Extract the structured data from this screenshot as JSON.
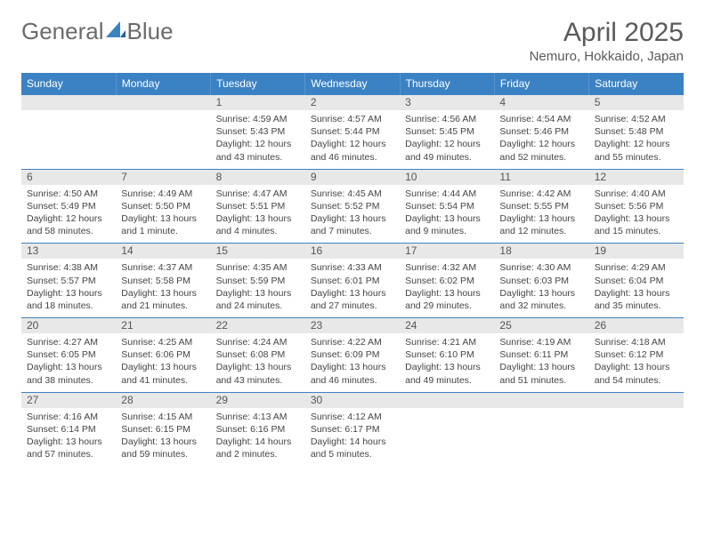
{
  "logo": {
    "text1": "General",
    "text2": "Blue"
  },
  "title": "April 2025",
  "location": "Nemuro, Hokkaido, Japan",
  "colors": {
    "header_bg": "#3b82c4",
    "header_text": "#ffffff",
    "date_bar_bg": "#e8e8e8",
    "border": "#3b82c4",
    "body_text": "#444444",
    "title_text": "#5a5a5a",
    "logo_text": "#6b6b6b"
  },
  "day_headers": [
    "Sunday",
    "Monday",
    "Tuesday",
    "Wednesday",
    "Thursday",
    "Friday",
    "Saturday"
  ],
  "weeks": [
    [
      {
        "date": "",
        "sunrise": "",
        "sunset": "",
        "daylight": ""
      },
      {
        "date": "",
        "sunrise": "",
        "sunset": "",
        "daylight": ""
      },
      {
        "date": "1",
        "sunrise": "Sunrise: 4:59 AM",
        "sunset": "Sunset: 5:43 PM",
        "daylight": "Daylight: 12 hours and 43 minutes."
      },
      {
        "date": "2",
        "sunrise": "Sunrise: 4:57 AM",
        "sunset": "Sunset: 5:44 PM",
        "daylight": "Daylight: 12 hours and 46 minutes."
      },
      {
        "date": "3",
        "sunrise": "Sunrise: 4:56 AM",
        "sunset": "Sunset: 5:45 PM",
        "daylight": "Daylight: 12 hours and 49 minutes."
      },
      {
        "date": "4",
        "sunrise": "Sunrise: 4:54 AM",
        "sunset": "Sunset: 5:46 PM",
        "daylight": "Daylight: 12 hours and 52 minutes."
      },
      {
        "date": "5",
        "sunrise": "Sunrise: 4:52 AM",
        "sunset": "Sunset: 5:48 PM",
        "daylight": "Daylight: 12 hours and 55 minutes."
      }
    ],
    [
      {
        "date": "6",
        "sunrise": "Sunrise: 4:50 AM",
        "sunset": "Sunset: 5:49 PM",
        "daylight": "Daylight: 12 hours and 58 minutes."
      },
      {
        "date": "7",
        "sunrise": "Sunrise: 4:49 AM",
        "sunset": "Sunset: 5:50 PM",
        "daylight": "Daylight: 13 hours and 1 minute."
      },
      {
        "date": "8",
        "sunrise": "Sunrise: 4:47 AM",
        "sunset": "Sunset: 5:51 PM",
        "daylight": "Daylight: 13 hours and 4 minutes."
      },
      {
        "date": "9",
        "sunrise": "Sunrise: 4:45 AM",
        "sunset": "Sunset: 5:52 PM",
        "daylight": "Daylight: 13 hours and 7 minutes."
      },
      {
        "date": "10",
        "sunrise": "Sunrise: 4:44 AM",
        "sunset": "Sunset: 5:54 PM",
        "daylight": "Daylight: 13 hours and 9 minutes."
      },
      {
        "date": "11",
        "sunrise": "Sunrise: 4:42 AM",
        "sunset": "Sunset: 5:55 PM",
        "daylight": "Daylight: 13 hours and 12 minutes."
      },
      {
        "date": "12",
        "sunrise": "Sunrise: 4:40 AM",
        "sunset": "Sunset: 5:56 PM",
        "daylight": "Daylight: 13 hours and 15 minutes."
      }
    ],
    [
      {
        "date": "13",
        "sunrise": "Sunrise: 4:38 AM",
        "sunset": "Sunset: 5:57 PM",
        "daylight": "Daylight: 13 hours and 18 minutes."
      },
      {
        "date": "14",
        "sunrise": "Sunrise: 4:37 AM",
        "sunset": "Sunset: 5:58 PM",
        "daylight": "Daylight: 13 hours and 21 minutes."
      },
      {
        "date": "15",
        "sunrise": "Sunrise: 4:35 AM",
        "sunset": "Sunset: 5:59 PM",
        "daylight": "Daylight: 13 hours and 24 minutes."
      },
      {
        "date": "16",
        "sunrise": "Sunrise: 4:33 AM",
        "sunset": "Sunset: 6:01 PM",
        "daylight": "Daylight: 13 hours and 27 minutes."
      },
      {
        "date": "17",
        "sunrise": "Sunrise: 4:32 AM",
        "sunset": "Sunset: 6:02 PM",
        "daylight": "Daylight: 13 hours and 29 minutes."
      },
      {
        "date": "18",
        "sunrise": "Sunrise: 4:30 AM",
        "sunset": "Sunset: 6:03 PM",
        "daylight": "Daylight: 13 hours and 32 minutes."
      },
      {
        "date": "19",
        "sunrise": "Sunrise: 4:29 AM",
        "sunset": "Sunset: 6:04 PM",
        "daylight": "Daylight: 13 hours and 35 minutes."
      }
    ],
    [
      {
        "date": "20",
        "sunrise": "Sunrise: 4:27 AM",
        "sunset": "Sunset: 6:05 PM",
        "daylight": "Daylight: 13 hours and 38 minutes."
      },
      {
        "date": "21",
        "sunrise": "Sunrise: 4:25 AM",
        "sunset": "Sunset: 6:06 PM",
        "daylight": "Daylight: 13 hours and 41 minutes."
      },
      {
        "date": "22",
        "sunrise": "Sunrise: 4:24 AM",
        "sunset": "Sunset: 6:08 PM",
        "daylight": "Daylight: 13 hours and 43 minutes."
      },
      {
        "date": "23",
        "sunrise": "Sunrise: 4:22 AM",
        "sunset": "Sunset: 6:09 PM",
        "daylight": "Daylight: 13 hours and 46 minutes."
      },
      {
        "date": "24",
        "sunrise": "Sunrise: 4:21 AM",
        "sunset": "Sunset: 6:10 PM",
        "daylight": "Daylight: 13 hours and 49 minutes."
      },
      {
        "date": "25",
        "sunrise": "Sunrise: 4:19 AM",
        "sunset": "Sunset: 6:11 PM",
        "daylight": "Daylight: 13 hours and 51 minutes."
      },
      {
        "date": "26",
        "sunrise": "Sunrise: 4:18 AM",
        "sunset": "Sunset: 6:12 PM",
        "daylight": "Daylight: 13 hours and 54 minutes."
      }
    ],
    [
      {
        "date": "27",
        "sunrise": "Sunrise: 4:16 AM",
        "sunset": "Sunset: 6:14 PM",
        "daylight": "Daylight: 13 hours and 57 minutes."
      },
      {
        "date": "28",
        "sunrise": "Sunrise: 4:15 AM",
        "sunset": "Sunset: 6:15 PM",
        "daylight": "Daylight: 13 hours and 59 minutes."
      },
      {
        "date": "29",
        "sunrise": "Sunrise: 4:13 AM",
        "sunset": "Sunset: 6:16 PM",
        "daylight": "Daylight: 14 hours and 2 minutes."
      },
      {
        "date": "30",
        "sunrise": "Sunrise: 4:12 AM",
        "sunset": "Sunset: 6:17 PM",
        "daylight": "Daylight: 14 hours and 5 minutes."
      },
      {
        "date": "",
        "sunrise": "",
        "sunset": "",
        "daylight": ""
      },
      {
        "date": "",
        "sunrise": "",
        "sunset": "",
        "daylight": ""
      },
      {
        "date": "",
        "sunrise": "",
        "sunset": "",
        "daylight": ""
      }
    ]
  ]
}
